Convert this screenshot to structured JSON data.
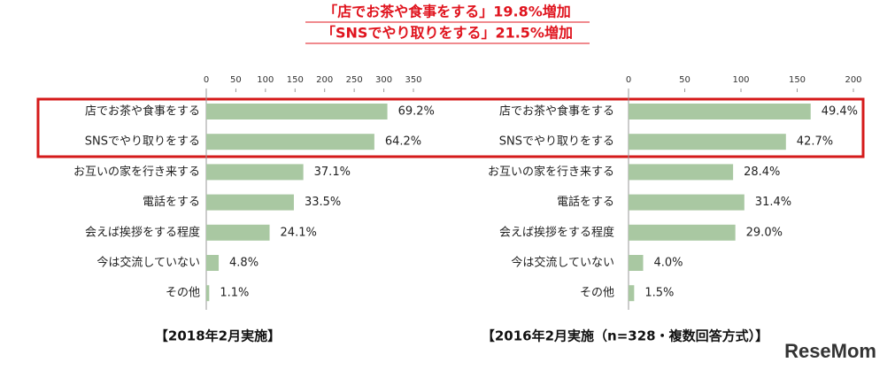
{
  "annotation": [
    "「店でお茶や食事をする」19.8%増加",
    "「SNSでやり取りをする」21.5%増加"
  ],
  "watermark": "ReseMom",
  "chart_data": [
    {
      "type": "bar",
      "orientation": "horizontal",
      "caption": "【2018年2月実施】",
      "categories": [
        "店でお茶や食事をする",
        "SNSでやり取りをする",
        "お互いの家を行き来する",
        "電話をする",
        "会えば挨拶をする程度",
        "今は交流していない",
        "その他"
      ],
      "values": [
        306,
        284,
        164,
        148,
        107,
        21,
        5
      ],
      "value_labels": [
        "69.2%",
        "64.2%",
        "37.1%",
        "33.5%",
        "24.1%",
        "4.8%",
        "1.1%"
      ],
      "color": "#a9c8a2",
      "xlim": [
        0,
        350
      ],
      "xticks": [
        0,
        50,
        100,
        150,
        200,
        250,
        300,
        350
      ],
      "grid": false
    },
    {
      "type": "bar",
      "orientation": "horizontal",
      "caption": "【2016年2月実施（n=328・複数回答方式）】",
      "categories": [
        "店でお茶や食事をする",
        "SNSでやり取りをする",
        "お互いの家を行き来する",
        "電話をする",
        "会えば挨拶をする程度",
        "今は交流していない",
        "その他"
      ],
      "values": [
        162,
        140,
        93,
        103,
        95,
        13,
        5
      ],
      "value_labels": [
        "49.4%",
        "42.7%",
        "28.4%",
        "31.4%",
        "29.0%",
        "4.0%",
        "1.5%"
      ],
      "color": "#a9c8a2",
      "xlim": [
        0,
        200
      ],
      "xticks": [
        0,
        50,
        100,
        150,
        200
      ],
      "grid": false
    }
  ]
}
